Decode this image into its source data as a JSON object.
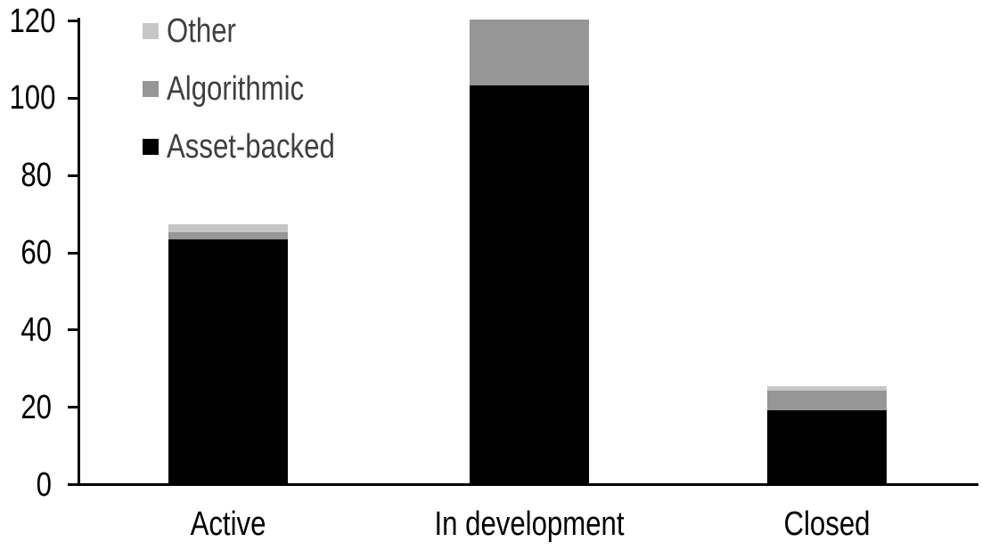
{
  "chart_data": {
    "type": "bar",
    "stacked": true,
    "title": "",
    "xlabel": "",
    "ylabel": "",
    "categories": [
      "Active",
      "In development",
      "Closed"
    ],
    "series": [
      {
        "name": "Asset-backed",
        "color": "#000000",
        "values": [
          63,
          103,
          19
        ]
      },
      {
        "name": "Algorithmic",
        "color": "#969696",
        "values": [
          2,
          17,
          5
        ]
      },
      {
        "name": "Other",
        "color": "#C6C6C6",
        "values": [
          2,
          0,
          1
        ]
      }
    ],
    "totals": [
      67,
      120,
      25
    ],
    "ylim": [
      0,
      120
    ],
    "yticks": [
      0,
      20,
      40,
      60,
      80,
      100,
      120
    ],
    "grid": false,
    "legend": {
      "position": "top-left",
      "order": [
        "Other",
        "Algorithmic",
        "Asset-backed"
      ],
      "text_color": "#3F3F3F"
    },
    "axis_color": "#000000",
    "background": "#FFFFFF"
  }
}
